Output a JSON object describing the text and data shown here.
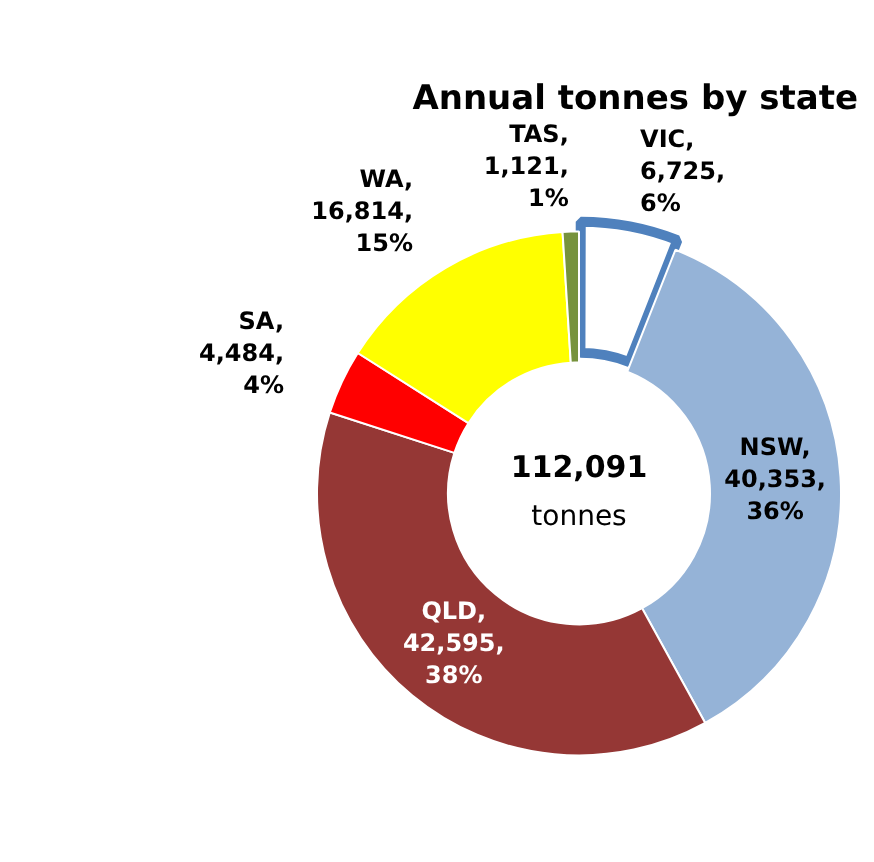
{
  "chart_data": {
    "type": "donut",
    "title": "Annual tonnes by state",
    "categories": [
      "VIC",
      "NSW",
      "QLD",
      "SA",
      "WA",
      "TAS"
    ],
    "values": [
      6725,
      40353,
      42595,
      4484,
      16814,
      1121
    ],
    "colors": [
      "#ffffff",
      "#95b3d7",
      "#953735",
      "#ff0000",
      "#ffff00",
      "#77933c"
    ],
    "value_labels": [
      ", 6,725, 6%",
      ", 40,353, 36%",
      ", 42,595, 38%",
      ", 4,484, 4%",
      ", 16,814, 15%",
      ", 1,121, 1%"
    ],
    "annotations": [
      "112,091",
      "tonnes"
    ],
    "legend": false
  }
}
